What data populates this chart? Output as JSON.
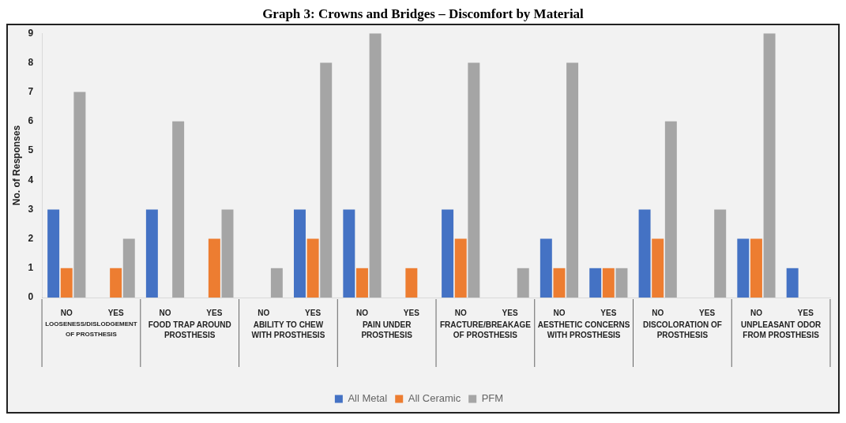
{
  "chart_data": {
    "type": "bar",
    "title": "Graph 3: Crowns and Bridges – Discomfort by Material",
    "ylabel": "No. of Responses",
    "categories": [
      "NO",
      "YES",
      "NO",
      "YES",
      "NO",
      "YES",
      "NO",
      "YES",
      "NO",
      "YES",
      "NO",
      "YES",
      "NO",
      "YES",
      "NO",
      "YES"
    ],
    "annotations": [
      "LOOSENESS/DISLODGEMENT OF PROSTHESIS",
      "FOOD TRAP AROUND PROSTHESIS",
      "ABILITY TO CHEW WITH PROSTHESIS",
      "PAIN UNDER PROSTHESIS",
      "FRACTURE/BREAKAGE OF PROSTHESIS",
      "AESTHETIC CONCERNS WITH PROSTHESIS",
      "DISCOLORATION OF PROSTHESIS",
      "UNPLEASANT ODOR FROM PROSTHESIS"
    ],
    "series": [
      {
        "name": "All Metal",
        "color": "#4472c4",
        "values": [
          3,
          0,
          3,
          0,
          0,
          3,
          3,
          0,
          3,
          0,
          2,
          1,
          3,
          0,
          2,
          1
        ]
      },
      {
        "name": "All Ceramic",
        "color": "#ed7d31",
        "values": [
          1,
          1,
          0,
          2,
          0,
          2,
          1,
          1,
          2,
          0,
          1,
          1,
          2,
          0,
          2,
          0
        ]
      },
      {
        "name": "PFM",
        "color": "#a5a5a5",
        "values": [
          7,
          2,
          6,
          3,
          1,
          8,
          9,
          0,
          8,
          1,
          8,
          1,
          6,
          3,
          9,
          0
        ]
      }
    ],
    "ylim": [
      0,
      9
    ],
    "yticks": [
      0,
      1,
      2,
      3,
      4,
      5,
      6,
      7,
      8,
      9
    ],
    "grid": false,
    "legend": "bottom"
  }
}
